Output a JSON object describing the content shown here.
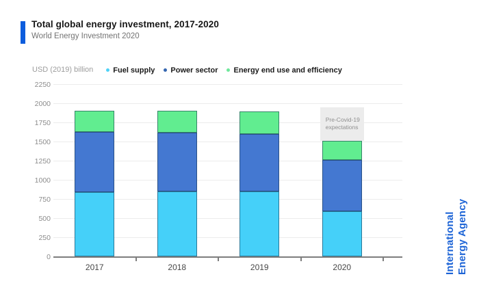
{
  "header": {
    "title": "Total global energy investment, 2017-2020",
    "subtitle": "World Energy Investment 2020",
    "accent_color": "#0d5ddd"
  },
  "legend": {
    "unit_label": "USD (2019) billion",
    "items": [
      {
        "label": "Fuel supply",
        "dot_color": "#4fd2f7"
      },
      {
        "label": "Power sector",
        "dot_color": "#3466b0"
      },
      {
        "label": "Energy end use and efficiency",
        "dot_color": "#6fe89c"
      }
    ]
  },
  "watermark": {
    "line1": "International",
    "line2": "Energy Agency",
    "color": "#1d64d6"
  },
  "chart_data": {
    "type": "bar",
    "stacked": true,
    "title": "Total global energy investment, 2017-2020",
    "subtitle": "World Energy Investment 2020",
    "unit": "USD (2019) billion",
    "categories": [
      "2017",
      "2018",
      "2019",
      "2020"
    ],
    "series": [
      {
        "name": "Fuel supply",
        "color": "#45d0f9",
        "values": [
          840,
          845,
          845,
          585
        ]
      },
      {
        "name": "Power sector",
        "color": "#4478d1",
        "values": [
          785,
          770,
          750,
          675
        ]
      },
      {
        "name": "Energy end use and efficiency",
        "color": "#61ed90",
        "values": [
          280,
          285,
          295,
          250
        ]
      }
    ],
    "totals": [
      1905,
      1900,
      1890,
      1510
    ],
    "annotation": {
      "label": "Pre-Covid-19 expectations",
      "category": "2020",
      "from": 1510,
      "to": 1950
    },
    "ylim": [
      0,
      2250
    ],
    "ytick_step": 250,
    "grid": true,
    "legend_position": "top"
  }
}
